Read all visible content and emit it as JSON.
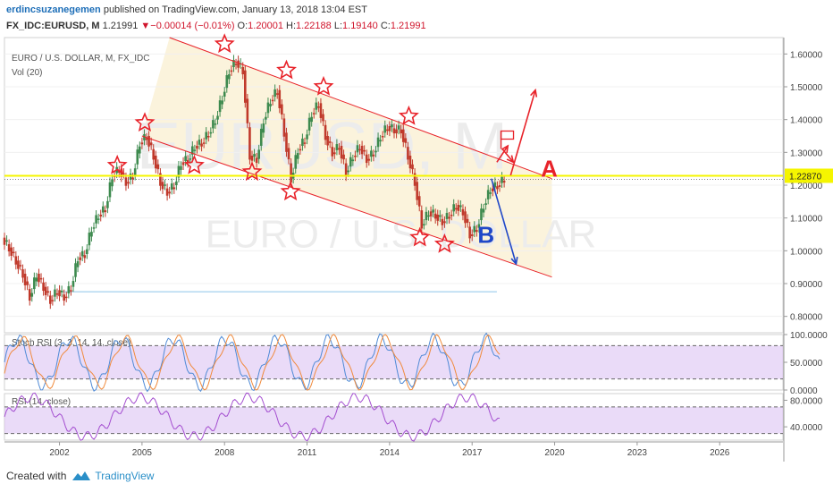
{
  "header": {
    "author": "erdincsuzanegemen",
    "published_text": " published on TradingView.com, January 13, 2018 13:04 EST",
    "symbol": "FX_IDC:EURUSD, M",
    "last": "1.21991",
    "change": "−0.00014 (−0.01%)",
    "o_label": "O:",
    "o_val": "1.20001",
    "h_label": "H:",
    "h_val": "1.22188",
    "l_label": "L:",
    "l_val": "1.19140",
    "c_label": "C:",
    "c_val": "1.21991"
  },
  "footer": {
    "created_with": "Created with",
    "brand": "TradingView"
  },
  "colors": {
    "bull": "#3d8a4e",
    "bear": "#c0392b",
    "channel": "#e8232a",
    "arrowA": "#e8232a",
    "arrowB": "#1f47c8",
    "hline": "#f5f500",
    "band": "#f7e9c0"
  },
  "chart_data": {
    "type": "candlestick",
    "legend": [
      "EURO / U.S. DOLLAR, M, FX_IDC",
      "Vol (20)"
    ],
    "watermark_big": "EURUSD, M",
    "watermark_small": "EURO / U.S. DOLLAR",
    "price_axis": {
      "min": 0.75,
      "max": 1.65,
      "ticks": [
        "1.60000",
        "1.50000",
        "1.40000",
        "1.30000",
        "1.20000",
        "1.10000",
        "1.00000",
        "0.90000",
        "0.80000"
      ]
    },
    "time_axis": {
      "ticks": [
        "2002",
        "2005",
        "2008",
        "2011",
        "2014",
        "2017",
        "2020",
        "2023",
        "2026"
      ]
    },
    "price_label": "1.22870",
    "horizontal_line": 1.2287,
    "channel": {
      "upper": [
        [
          2006.0,
          1.65
        ],
        [
          2019.9,
          1.22
        ]
      ],
      "lower": [
        [
          2005.0,
          1.35
        ],
        [
          2019.9,
          0.92
        ]
      ]
    },
    "series_close": [
      [
        2000.0,
        1.01
      ],
      [
        2000.25,
        0.97
      ],
      [
        2000.5,
        0.93
      ],
      [
        2000.75,
        0.86
      ],
      [
        2001.0,
        0.93
      ],
      [
        2001.25,
        0.89
      ],
      [
        2001.5,
        0.85
      ],
      [
        2001.75,
        0.88
      ],
      [
        2002.0,
        0.86
      ],
      [
        2002.25,
        0.89
      ],
      [
        2002.5,
        0.98
      ],
      [
        2002.75,
        0.99
      ],
      [
        2003.0,
        1.07
      ],
      [
        2003.25,
        1.11
      ],
      [
        2003.5,
        1.13
      ],
      [
        2003.75,
        1.23
      ],
      [
        2004.0,
        1.25
      ],
      [
        2004.25,
        1.21
      ],
      [
        2004.5,
        1.23
      ],
      [
        2004.75,
        1.33
      ],
      [
        2005.0,
        1.35
      ],
      [
        2005.25,
        1.29
      ],
      [
        2005.5,
        1.21
      ],
      [
        2005.75,
        1.18
      ],
      [
        2006.0,
        1.2
      ],
      [
        2006.25,
        1.27
      ],
      [
        2006.5,
        1.28
      ],
      [
        2006.75,
        1.32
      ],
      [
        2007.0,
        1.33
      ],
      [
        2007.25,
        1.36
      ],
      [
        2007.5,
        1.4
      ],
      [
        2007.75,
        1.47
      ],
      [
        2008.0,
        1.55
      ],
      [
        2008.25,
        1.58
      ],
      [
        2008.5,
        1.55
      ],
      [
        2008.75,
        1.29
      ],
      [
        2009.0,
        1.28
      ],
      [
        2009.25,
        1.4
      ],
      [
        2009.5,
        1.46
      ],
      [
        2009.75,
        1.49
      ],
      [
        2010.0,
        1.36
      ],
      [
        2010.25,
        1.22
      ],
      [
        2010.5,
        1.31
      ],
      [
        2010.75,
        1.34
      ],
      [
        2011.0,
        1.42
      ],
      [
        2011.25,
        1.45
      ],
      [
        2011.5,
        1.35
      ],
      [
        2011.75,
        1.3
      ],
      [
        2012.0,
        1.32
      ],
      [
        2012.25,
        1.24
      ],
      [
        2012.5,
        1.29
      ],
      [
        2012.75,
        1.32
      ],
      [
        2013.0,
        1.28
      ],
      [
        2013.25,
        1.3
      ],
      [
        2013.5,
        1.35
      ],
      [
        2013.75,
        1.38
      ],
      [
        2014.0,
        1.37
      ],
      [
        2014.25,
        1.37
      ],
      [
        2014.5,
        1.29
      ],
      [
        2014.75,
        1.21
      ],
      [
        2015.0,
        1.08
      ],
      [
        2015.25,
        1.12
      ],
      [
        2015.5,
        1.11
      ],
      [
        2015.75,
        1.09
      ],
      [
        2016.0,
        1.11
      ],
      [
        2016.25,
        1.14
      ],
      [
        2016.5,
        1.12
      ],
      [
        2016.75,
        1.05
      ],
      [
        2017.0,
        1.07
      ],
      [
        2017.25,
        1.14
      ],
      [
        2017.5,
        1.19
      ],
      [
        2017.75,
        1.2
      ],
      [
        2018.0,
        1.22
      ]
    ],
    "annotations": {
      "stars": [
        [
          2004.1,
          1.26
        ],
        [
          2005.1,
          1.39
        ],
        [
          2006.9,
          1.26
        ],
        [
          2008.0,
          1.63
        ],
        [
          2009.0,
          1.24
        ],
        [
          2010.25,
          1.55
        ],
        [
          2010.4,
          1.18
        ],
        [
          2011.6,
          1.5
        ],
        [
          2014.7,
          1.41
        ],
        [
          2015.1,
          1.04
        ],
        [
          2016.0,
          1.02
        ]
      ],
      "label_A": "A",
      "label_B": "B"
    },
    "indicators": [
      {
        "name": "Stoch RSI (3, 3, 14, 14, close)",
        "ticks": [
          "100.0000",
          "50.0000",
          "0.0000"
        ],
        "bands": [
          80,
          20
        ]
      },
      {
        "name": "RSI (14, close)",
        "ticks": [
          "80.0000",
          "40.0000"
        ],
        "bands": [
          70,
          30
        ]
      }
    ]
  }
}
